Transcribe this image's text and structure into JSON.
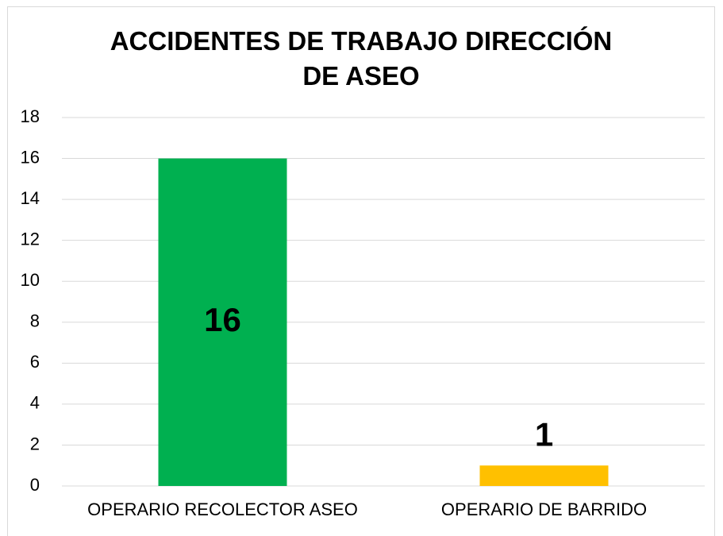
{
  "chart_data": {
    "type": "bar",
    "title": "ACCIDENTES DE TRABAJO DIRECCIÓN DE ASEO",
    "categories": [
      "OPERARIO RECOLECTOR ASEO",
      "OPERARIO DE BARRIDO"
    ],
    "values": [
      16,
      1
    ],
    "colors": [
      "#00b050",
      "#ffc000"
    ],
    "ylim": [
      0,
      18
    ],
    "yticks": [
      0,
      2,
      4,
      6,
      8,
      10,
      12,
      14,
      16,
      18
    ],
    "grid": true
  }
}
